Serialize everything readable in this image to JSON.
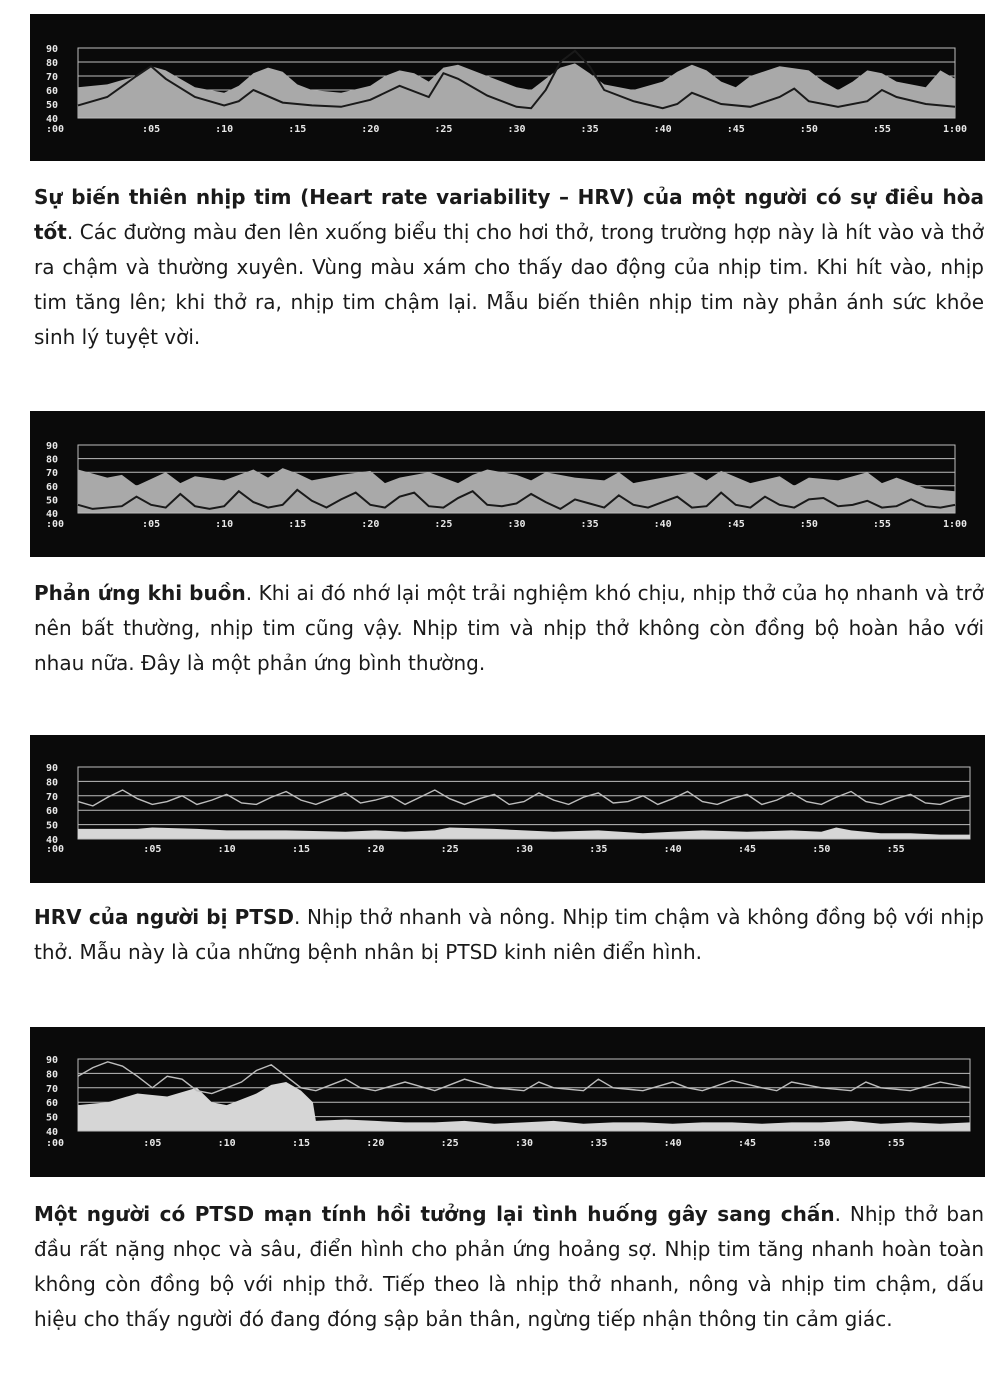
{
  "chart_data": [
    {
      "type": "area",
      "yticks": [
        90,
        80,
        70,
        60,
        50,
        40
      ],
      "xticks": [
        ":00",
        ":05",
        ":10",
        ":15",
        ":20",
        ":25",
        ":30",
        ":35",
        ":40",
        ":45",
        ":50",
        ":55",
        "1:00"
      ],
      "xlim": [
        0,
        60
      ],
      "ylim": [
        40,
        90
      ],
      "series": [
        {
          "role": "heart_rate",
          "x": [
            0,
            2,
            4,
            5,
            6,
            8,
            10,
            11,
            12,
            13,
            14,
            15,
            16,
            18,
            20,
            21,
            22,
            23,
            24,
            25,
            26,
            28,
            30,
            31,
            32,
            33,
            34,
            35,
            36,
            38,
            40,
            41,
            42,
            43,
            44,
            45,
            46,
            48,
            50,
            51,
            52,
            53,
            54,
            55,
            56,
            58,
            59,
            60
          ],
          "y": [
            62,
            64,
            70,
            77,
            74,
            62,
            58,
            63,
            72,
            76,
            73,
            64,
            60,
            58,
            63,
            70,
            74,
            72,
            66,
            76,
            78,
            70,
            62,
            60,
            68,
            76,
            79,
            72,
            64,
            60,
            66,
            73,
            78,
            74,
            66,
            62,
            70,
            77,
            74,
            66,
            60,
            66,
            74,
            72,
            66,
            62,
            74,
            68
          ]
        },
        {
          "role": "breath",
          "x": [
            0,
            2,
            4,
            5,
            6,
            8,
            10,
            11,
            12,
            14,
            16,
            18,
            20,
            22,
            24,
            25,
            26,
            28,
            30,
            31,
            32,
            33,
            34,
            35,
            36,
            38,
            40,
            41,
            42,
            44,
            46,
            48,
            49,
            50,
            52,
            54,
            55,
            56,
            58,
            60
          ],
          "y": [
            49,
            55,
            70,
            77,
            68,
            55,
            49,
            52,
            60,
            51,
            49,
            48,
            53,
            63,
            55,
            72,
            68,
            56,
            48,
            47,
            60,
            80,
            88,
            77,
            60,
            52,
            47,
            50,
            58,
            50,
            48,
            55,
            61,
            52,
            48,
            52,
            60,
            55,
            50,
            48
          ]
        }
      ]
    },
    {
      "type": "area",
      "yticks": [
        90,
        80,
        70,
        60,
        50,
        40
      ],
      "xticks": [
        ":00",
        ":05",
        ":10",
        ":15",
        ":20",
        ":25",
        ":30",
        ":35",
        ":40",
        ":45",
        ":50",
        ":55",
        "1:00"
      ],
      "xlim": [
        0,
        60
      ],
      "ylim": [
        40,
        90
      ],
      "series": [
        {
          "role": "heart_rate",
          "x": [
            0,
            2,
            3,
            4,
            6,
            7,
            8,
            10,
            12,
            13,
            14,
            15,
            16,
            18,
            20,
            21,
            22,
            24,
            26,
            27,
            28,
            30,
            31,
            32,
            34,
            36,
            37,
            38,
            40,
            42,
            43,
            44,
            46,
            48,
            49,
            50,
            52,
            54,
            55,
            56,
            58,
            60
          ],
          "y": [
            72,
            66,
            68,
            60,
            70,
            62,
            67,
            64,
            72,
            66,
            73,
            69,
            64,
            68,
            71,
            62,
            66,
            70,
            62,
            68,
            72,
            68,
            64,
            70,
            66,
            64,
            70,
            62,
            66,
            70,
            64,
            71,
            62,
            67,
            60,
            66,
            64,
            70,
            62,
            66,
            58,
            56
          ]
        },
        {
          "role": "breath",
          "x": [
            0,
            1,
            2,
            3,
            4,
            5,
            6,
            7,
            8,
            9,
            10,
            11,
            12,
            13,
            14,
            15,
            16,
            17,
            18,
            19,
            20,
            21,
            22,
            23,
            24,
            25,
            26,
            27,
            28,
            29,
            30,
            31,
            32,
            33,
            34,
            35,
            36,
            37,
            38,
            39,
            40,
            41,
            42,
            43,
            44,
            45,
            46,
            47,
            48,
            49,
            50,
            51,
            52,
            53,
            54,
            55,
            56,
            57,
            58,
            59,
            60
          ],
          "y": [
            46,
            43,
            44,
            45,
            52,
            46,
            44,
            54,
            45,
            43,
            45,
            56,
            48,
            44,
            46,
            57,
            49,
            44,
            50,
            55,
            46,
            44,
            52,
            55,
            45,
            44,
            51,
            56,
            46,
            45,
            47,
            54,
            48,
            43,
            50,
            47,
            44,
            53,
            46,
            44,
            48,
            52,
            44,
            45,
            55,
            46,
            44,
            52,
            46,
            44,
            50,
            51,
            45,
            46,
            49,
            44,
            45,
            50,
            45,
            44,
            46
          ]
        }
      ]
    },
    {
      "type": "area",
      "yticks": [
        90,
        80,
        70,
        60,
        50,
        40
      ],
      "xticks": [
        ":00",
        ":05",
        ":10",
        ":15",
        ":20",
        ":25",
        ":30",
        ":35",
        ":40",
        ":45",
        ":50",
        ":55"
      ],
      "xlim": [
        0,
        60
      ],
      "ylim": [
        40,
        90
      ],
      "series": [
        {
          "role": "breath",
          "x": [
            0,
            1,
            2,
            3,
            4,
            5,
            6,
            7,
            8,
            9,
            10,
            11,
            12,
            13,
            14,
            15,
            16,
            17,
            18,
            19,
            20,
            21,
            22,
            23,
            24,
            25,
            26,
            27,
            28,
            29,
            30,
            31,
            32,
            33,
            34,
            35,
            36,
            37,
            38,
            39,
            40,
            41,
            42,
            43,
            44,
            45,
            46,
            47,
            48,
            49,
            50,
            51,
            52,
            53,
            54,
            55,
            56,
            57,
            58,
            59,
            60
          ],
          "y": [
            66,
            63,
            69,
            74,
            68,
            64,
            66,
            70,
            64,
            67,
            71,
            65,
            64,
            69,
            73,
            67,
            64,
            68,
            72,
            65,
            67,
            70,
            64,
            69,
            74,
            68,
            64,
            68,
            71,
            64,
            66,
            72,
            67,
            64,
            69,
            72,
            65,
            66,
            70,
            64,
            68,
            73,
            66,
            64,
            68,
            71,
            64,
            67,
            72,
            66,
            64,
            69,
            73,
            66,
            64,
            68,
            71,
            65,
            64,
            68,
            70
          ]
        },
        {
          "role": "heart_rate",
          "x": [
            0,
            4,
            5,
            8,
            10,
            14,
            18,
            20,
            22,
            24,
            25,
            28,
            30,
            32,
            35,
            38,
            40,
            42,
            45,
            48,
            50,
            51,
            52,
            54,
            56,
            58,
            60
          ],
          "y": [
            47,
            47,
            48,
            47,
            46,
            46,
            45,
            46,
            45,
            46,
            48,
            47,
            46,
            45,
            46,
            44,
            45,
            46,
            45,
            46,
            45,
            48,
            46,
            44,
            44,
            43,
            43
          ]
        }
      ]
    },
    {
      "type": "area",
      "yticks": [
        90,
        80,
        70,
        60,
        50,
        40
      ],
      "xticks": [
        ":00",
        ":05",
        ":10",
        ":15",
        ":20",
        ":25",
        ":30",
        ":35",
        ":40",
        ":45",
        ":50",
        ":55"
      ],
      "xlim": [
        0,
        60
      ],
      "ylim": [
        40,
        90
      ],
      "series": [
        {
          "role": "breath",
          "x": [
            0,
            1,
            2,
            3,
            4,
            5,
            6,
            7,
            8,
            9,
            10,
            11,
            12,
            13,
            14,
            15,
            16,
            17,
            18,
            19,
            20,
            22,
            24,
            25,
            26,
            28,
            30,
            31,
            32,
            34,
            35,
            36,
            38,
            40,
            41,
            42,
            44,
            46,
            47,
            48,
            50,
            52,
            53,
            54,
            56,
            58,
            60
          ],
          "y": [
            78,
            84,
            88,
            85,
            78,
            70,
            78,
            76,
            68,
            66,
            70,
            74,
            82,
            86,
            78,
            70,
            68,
            72,
            76,
            70,
            68,
            74,
            68,
            72,
            76,
            70,
            68,
            74,
            70,
            68,
            76,
            70,
            68,
            74,
            70,
            68,
            75,
            70,
            68,
            74,
            70,
            68,
            74,
            70,
            68,
            74,
            70
          ]
        },
        {
          "role": "heart_rate",
          "x": [
            0,
            2,
            4,
            6,
            8,
            9,
            10,
            11,
            12,
            13,
            14,
            15,
            15.8,
            16,
            18,
            20,
            22,
            24,
            26,
            28,
            30,
            32,
            34,
            36,
            38,
            40,
            42,
            44,
            46,
            48,
            50,
            52,
            54,
            56,
            58,
            60
          ],
          "y": [
            58,
            60,
            66,
            64,
            70,
            60,
            58,
            62,
            66,
            72,
            74,
            68,
            60,
            47,
            48,
            47,
            46,
            46,
            47,
            45,
            46,
            47,
            45,
            46,
            46,
            45,
            46,
            46,
            45,
            46,
            46,
            47,
            45,
            46,
            45,
            46
          ]
        }
      ]
    }
  ],
  "captions": [
    {
      "bold": "Sự biến thiên nhịp tim (Heart rate variability – HRV) của một người có sự điều hòa tốt",
      "text": ". Các đường màu đen lên xuống biểu thị cho hơi thở, trong trường hợp này là hít vào và thở ra chậm và thường xuyên. Vùng màu xám cho thấy dao động của nhịp tim. Khi hít vào, nhịp tim tăng lên; khi thở ra, nhịp tim chậm lại. Mẫu biến thiên nhịp tim này phản ánh sức khỏe sinh lý tuyệt vời."
    },
    {
      "bold": "Phản ứng khi buồn",
      "text": ". Khi ai đó nhớ lại một trải nghiệm khó chịu, nhịp thở của họ nhanh và trở nên bất thường, nhịp tim cũng vậy. Nhịp tim và nhịp thở không còn đồng bộ hoàn hảo với nhau nữa. Đây là một phản ứng bình thường."
    },
    {
      "bold": "HRV của người bị PTSD",
      "text": ". Nhịp thở nhanh và nông. Nhịp tim chậm và không đồng bộ với nhịp thở. Mẫu này là của những bệnh nhân bị PTSD kinh niên điển hình."
    },
    {
      "bold": "Một người có PTSD mạn tính hồi tưởng lại tình huống gây sang chấn",
      "text": ". Nhịp thở ban đầu rất nặng nhọc và sâu, điển hình cho phản ứng hoảng sợ. Nhịp tim tăng nhanh hoàn toàn không còn đồng bộ với nhịp thở. Tiếp theo là nhịp thở nhanh, nông và nhịp tim chậm, dấu hiệu cho thấy người đó đang đóng sập bản thân, ngừng tiếp nhận thông tin cảm giác."
    }
  ]
}
